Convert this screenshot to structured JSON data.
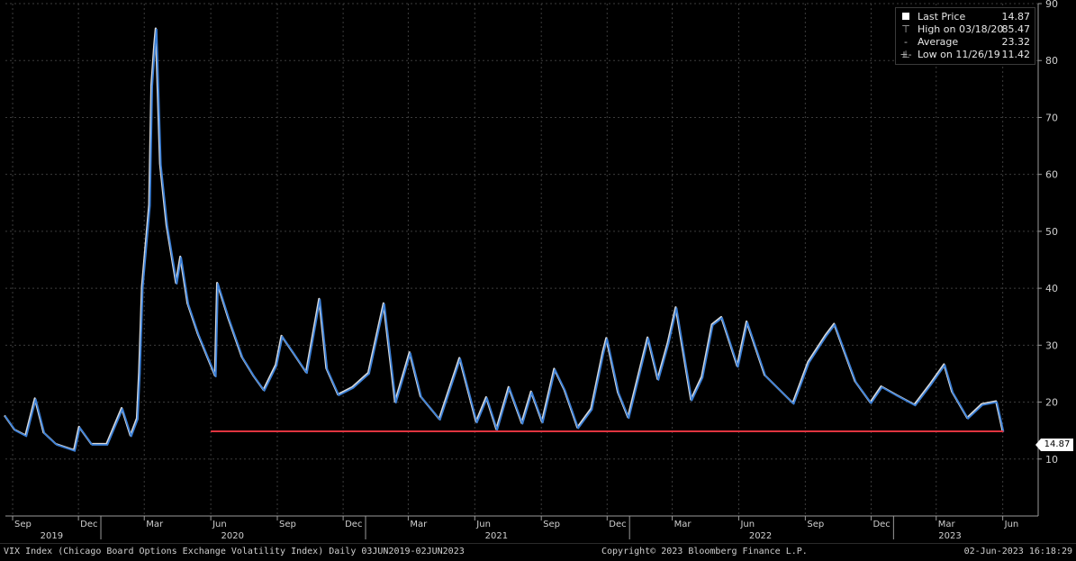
{
  "chart_data": {
    "type": "line",
    "title": "",
    "ylim": [
      0,
      90
    ],
    "y_ticks": [
      "10",
      "20",
      "30",
      "40",
      "50",
      "60",
      "70",
      "80",
      "90"
    ],
    "x_range": [
      "2019-08-22",
      "2023-07-20"
    ],
    "x_month_ticks": [
      {
        "label": "Sep",
        "date": "2019-09-01"
      },
      {
        "label": "Dec",
        "date": "2019-12-01"
      },
      {
        "label": "Mar",
        "date": "2020-03-01"
      },
      {
        "label": "Jun",
        "date": "2020-06-01"
      },
      {
        "label": "Sep",
        "date": "2020-09-01"
      },
      {
        "label": "Dec",
        "date": "2020-12-01"
      },
      {
        "label": "Mar",
        "date": "2021-03-01"
      },
      {
        "label": "Jun",
        "date": "2021-06-01"
      },
      {
        "label": "Sep",
        "date": "2021-09-01"
      },
      {
        "label": "Dec",
        "date": "2021-12-01"
      },
      {
        "label": "Mar",
        "date": "2022-03-01"
      },
      {
        "label": "Jun",
        "date": "2022-06-01"
      },
      {
        "label": "Sep",
        "date": "2022-09-01"
      },
      {
        "label": "Dec",
        "date": "2022-12-01"
      },
      {
        "label": "Mar",
        "date": "2023-03-01"
      },
      {
        "label": "Jun",
        "date": "2023-06-01"
      }
    ],
    "x_year_labels": [
      {
        "label": "2019",
        "date": "2019-10-25"
      },
      {
        "label": "2020",
        "date": "2020-07-01"
      },
      {
        "label": "2021",
        "date": "2021-07-01"
      },
      {
        "label": "2022",
        "date": "2022-07-01"
      },
      {
        "label": "2023",
        "date": "2023-03-20"
      }
    ],
    "grid": true,
    "line_color": "#3b7fd6",
    "shadow_color": "#ffffff",
    "series": [
      {
        "points": [
          [
            "2019-08-22",
            17.5
          ],
          [
            "2019-09-05",
            15.0
          ],
          [
            "2019-09-20",
            14.0
          ],
          [
            "2019-10-03",
            20.5
          ],
          [
            "2019-10-15",
            14.5
          ],
          [
            "2019-11-01",
            12.5
          ],
          [
            "2019-11-26",
            11.42
          ],
          [
            "2019-12-03",
            15.5
          ],
          [
            "2019-12-20",
            12.5
          ],
          [
            "2020-01-10",
            12.5
          ],
          [
            "2020-01-31",
            18.8
          ],
          [
            "2020-02-12",
            14.0
          ],
          [
            "2020-02-21",
            17.0
          ],
          [
            "2020-02-24",
            25.0
          ],
          [
            "2020-02-28",
            40.1
          ],
          [
            "2020-03-09",
            54.5
          ],
          [
            "2020-03-12",
            75.5
          ],
          [
            "2020-03-16",
            82.7
          ],
          [
            "2020-03-18",
            85.47
          ],
          [
            "2020-03-24",
            61.7
          ],
          [
            "2020-04-02",
            50.9
          ],
          [
            "2020-04-15",
            40.8
          ],
          [
            "2020-04-21",
            45.4
          ],
          [
            "2020-05-01",
            37.2
          ],
          [
            "2020-05-15",
            31.9
          ],
          [
            "2020-06-08",
            24.5
          ],
          [
            "2020-06-11",
            40.8
          ],
          [
            "2020-06-26",
            34.7
          ],
          [
            "2020-07-15",
            27.8
          ],
          [
            "2020-07-31",
            24.5
          ],
          [
            "2020-08-14",
            22.0
          ],
          [
            "2020-08-31",
            26.4
          ],
          [
            "2020-09-08",
            31.5
          ],
          [
            "2020-09-24",
            28.5
          ],
          [
            "2020-10-12",
            25.1
          ],
          [
            "2020-10-30",
            38.0
          ],
          [
            "2020-11-09",
            25.8
          ],
          [
            "2020-11-25",
            21.2
          ],
          [
            "2020-12-15",
            22.5
          ],
          [
            "2021-01-06",
            25.0
          ],
          [
            "2021-01-27",
            37.2
          ],
          [
            "2021-02-12",
            19.9
          ],
          [
            "2021-03-04",
            28.6
          ],
          [
            "2021-03-19",
            20.9
          ],
          [
            "2021-04-14",
            16.9
          ],
          [
            "2021-05-12",
            27.6
          ],
          [
            "2021-06-04",
            16.4
          ],
          [
            "2021-06-18",
            20.7
          ],
          [
            "2021-07-02",
            15.1
          ],
          [
            "2021-07-19",
            22.5
          ],
          [
            "2021-08-06",
            16.2
          ],
          [
            "2021-08-19",
            21.7
          ],
          [
            "2021-09-03",
            16.4
          ],
          [
            "2021-09-20",
            25.7
          ],
          [
            "2021-10-04",
            22.0
          ],
          [
            "2021-10-22",
            15.4
          ],
          [
            "2021-11-10",
            18.7
          ],
          [
            "2021-11-26",
            28.6
          ],
          [
            "2021-12-01",
            31.1
          ],
          [
            "2021-12-17",
            21.6
          ],
          [
            "2021-12-31",
            17.2
          ],
          [
            "2022-01-27",
            31.2
          ],
          [
            "2022-02-10",
            23.9
          ],
          [
            "2022-02-24",
            30.3
          ],
          [
            "2022-03-07",
            36.5
          ],
          [
            "2022-03-28",
            20.3
          ],
          [
            "2022-04-12",
            24.3
          ],
          [
            "2022-04-26",
            33.5
          ],
          [
            "2022-05-09",
            34.8
          ],
          [
            "2022-05-31",
            26.2
          ],
          [
            "2022-06-13",
            34.0
          ],
          [
            "2022-07-08",
            24.6
          ],
          [
            "2022-08-16",
            19.7
          ],
          [
            "2022-09-06",
            26.9
          ],
          [
            "2022-09-30",
            31.6
          ],
          [
            "2022-10-12",
            33.6
          ],
          [
            "2022-11-10",
            23.5
          ],
          [
            "2022-12-01",
            19.8
          ],
          [
            "2022-12-16",
            22.6
          ],
          [
            "2023-01-06",
            21.1
          ],
          [
            "2023-01-31",
            19.4
          ],
          [
            "2023-02-21",
            22.9
          ],
          [
            "2023-03-13",
            26.5
          ],
          [
            "2023-03-24",
            21.7
          ],
          [
            "2023-04-14",
            17.1
          ],
          [
            "2023-05-04",
            19.5
          ],
          [
            "2023-05-24",
            20.0
          ],
          [
            "2023-06-02",
            14.87
          ]
        ]
      }
    ],
    "reference_line": {
      "y": 14.87,
      "from": "2020-06-01",
      "to": "2023-06-02",
      "color": "#e0343f"
    },
    "last_value_tag": "14.87",
    "legend": {
      "placement": "top-right",
      "items": [
        {
          "label": "Last Price",
          "value": "14.87"
        },
        {
          "label": "High on 03/18/20",
          "value": "85.47"
        },
        {
          "label": "Average",
          "value": "23.32"
        },
        {
          "label": "Low on 11/26/19",
          "value": "11.42"
        }
      ]
    }
  },
  "footer": {
    "left": "VIX Index (Chicago Board Options Exchange Volatility Index)  Daily 03JUN2019-02JUN2023",
    "center": "Copyright© 2023 Bloomberg Finance L.P.",
    "right": "02-Jun-2023 16:18:29"
  }
}
